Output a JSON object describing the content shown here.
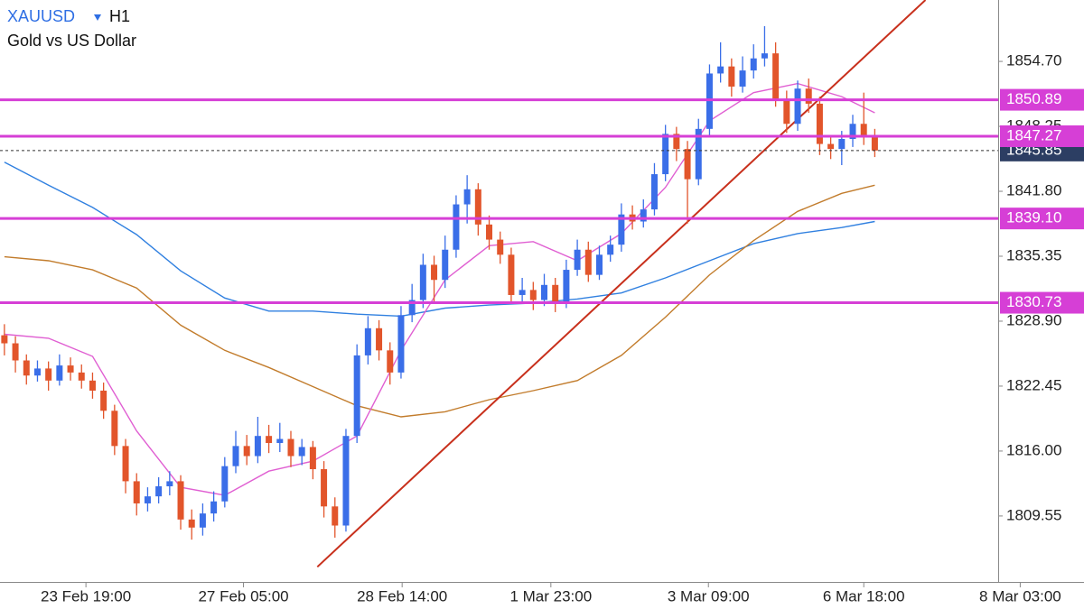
{
  "chart_data": {
    "type": "candlestick",
    "title": "XAUUSD",
    "timeframe": "H1",
    "subtitle": "Gold vs US Dollar",
    "up_color": "#3a6ee8",
    "down_color": "#e2552b",
    "open": [
      1827.5,
      1826.7,
      1825.0,
      1823.5,
      1824.2,
      1823.0,
      1824.5,
      1823.8,
      1823.0,
      1822.0,
      1820.0,
      1816.5,
      1813.0,
      1810.8,
      1811.5,
      1812.5,
      1813.0,
      1809.2,
      1808.4,
      1809.8,
      1811.0,
      1814.5,
      1816.5,
      1815.5,
      1817.5,
      1816.8,
      1817.2,
      1815.5,
      1816.4,
      1814.2,
      1810.5,
      1808.6,
      1817.5,
      1825.5,
      1828.2,
      1826.0,
      1823.8,
      1829.5,
      1831.0,
      1834.5,
      1833.0,
      1836.0,
      1840.5,
      1842.0,
      1838.5,
      1837.0,
      1835.5,
      1831.5,
      1832.0,
      1831.0,
      1832.5,
      1830.8,
      1834.0,
      1836.0,
      1833.5,
      1835.5,
      1836.5,
      1839.5,
      1838.8,
      1840.0,
      1843.5,
      1847.5,
      1846.0,
      1843.0,
      1848.0,
      1853.5,
      1854.2,
      1852.2,
      1853.8,
      1855.0,
      1855.5,
      1851.0,
      1848.5,
      1852.0,
      1850.5,
      1846.5,
      1846.0,
      1847.0,
      1848.5,
      1847.2
    ],
    "high": [
      1828.6,
      1827.4,
      1825.6,
      1825.0,
      1824.9,
      1825.6,
      1825.3,
      1824.6,
      1823.8,
      1822.8,
      1820.6,
      1817.2,
      1813.8,
      1812.4,
      1813.4,
      1814.0,
      1813.6,
      1810.2,
      1810.8,
      1812.0,
      1815.4,
      1818.0,
      1817.6,
      1819.4,
      1818.6,
      1818.8,
      1818.0,
      1817.2,
      1817.0,
      1815.0,
      1811.4,
      1818.2,
      1826.6,
      1829.4,
      1829.0,
      1826.8,
      1830.4,
      1832.6,
      1835.6,
      1835.4,
      1837.4,
      1841.4,
      1843.4,
      1842.6,
      1839.4,
      1837.8,
      1836.2,
      1833.2,
      1832.8,
      1833.6,
      1833.2,
      1835.0,
      1837.0,
      1836.8,
      1836.4,
      1837.4,
      1840.6,
      1840.4,
      1841.0,
      1844.6,
      1848.4,
      1848.2,
      1846.8,
      1849.0,
      1854.4,
      1856.6,
      1855.0,
      1855.2,
      1856.4,
      1858.2,
      1856.6,
      1851.8,
      1852.8,
      1853.0,
      1851.2,
      1847.2,
      1847.8,
      1849.4,
      1851.6,
      1848.0
    ],
    "low": [
      1825.5,
      1823.8,
      1822.6,
      1822.9,
      1822.0,
      1822.5,
      1823.0,
      1822.2,
      1821.2,
      1819.2,
      1815.6,
      1811.8,
      1809.6,
      1810.0,
      1810.8,
      1811.6,
      1808.2,
      1807.2,
      1807.6,
      1809.0,
      1810.4,
      1813.8,
      1814.6,
      1814.8,
      1815.8,
      1815.9,
      1814.4,
      1814.6,
      1813.2,
      1809.4,
      1807.4,
      1808.0,
      1816.8,
      1824.6,
      1825.0,
      1822.6,
      1823.2,
      1828.8,
      1830.2,
      1830.8,
      1832.2,
      1835.2,
      1838.6,
      1837.4,
      1836.0,
      1834.6,
      1830.6,
      1830.8,
      1830.0,
      1830.4,
      1829.8,
      1830.2,
      1833.4,
      1832.8,
      1833.0,
      1834.8,
      1835.8,
      1838.0,
      1838.2,
      1839.4,
      1842.8,
      1844.8,
      1838.6,
      1842.4,
      1847.4,
      1852.6,
      1851.2,
      1851.6,
      1853.0,
      1854.2,
      1850.2,
      1847.6,
      1847.8,
      1849.6,
      1845.4,
      1845.0,
      1844.4,
      1846.2,
      1846.4,
      1845.2
    ],
    "close": [
      1826.7,
      1825.0,
      1823.5,
      1824.2,
      1823.0,
      1824.5,
      1823.8,
      1823.0,
      1822.0,
      1820.0,
      1816.5,
      1813.0,
      1810.8,
      1811.5,
      1812.5,
      1813.0,
      1809.2,
      1808.4,
      1809.8,
      1811.0,
      1814.5,
      1816.5,
      1815.5,
      1817.5,
      1816.8,
      1817.2,
      1815.5,
      1816.4,
      1814.2,
      1810.5,
      1808.6,
      1817.5,
      1825.5,
      1828.2,
      1826.0,
      1823.8,
      1829.5,
      1831.0,
      1834.5,
      1833.0,
      1836.0,
      1840.5,
      1842.0,
      1838.5,
      1837.0,
      1835.5,
      1831.5,
      1832.0,
      1831.0,
      1832.5,
      1830.8,
      1834.0,
      1836.0,
      1833.5,
      1835.5,
      1836.5,
      1839.5,
      1838.8,
      1840.0,
      1843.5,
      1847.5,
      1846.0,
      1843.0,
      1848.0,
      1853.5,
      1854.2,
      1852.2,
      1853.8,
      1855.0,
      1855.5,
      1851.0,
      1848.5,
      1852.0,
      1850.5,
      1846.5,
      1846.0,
      1847.0,
      1848.5,
      1847.2,
      1845.85
    ],
    "overlays": [
      {
        "color": "#3080e0",
        "x": [
          0,
          4,
          8,
          12,
          16,
          20,
          24,
          28,
          32,
          36,
          40,
          44,
          48,
          52,
          56,
          60,
          64,
          68,
          72,
          76,
          79
        ],
        "values": [
          1844.7,
          1842.4,
          1840.2,
          1837.5,
          1833.9,
          1831.2,
          1829.9,
          1829.9,
          1829.6,
          1829.4,
          1830.2,
          1830.5,
          1830.7,
          1831.1,
          1831.7,
          1833.2,
          1834.9,
          1836.6,
          1837.6,
          1838.2,
          1838.8
        ]
      },
      {
        "color": "#c27c2c",
        "x": [
          0,
          4,
          8,
          12,
          16,
          20,
          24,
          28,
          32,
          36,
          40,
          44,
          48,
          52,
          56,
          60,
          64,
          68,
          72,
          76,
          79
        ],
        "values": [
          1835.3,
          1834.9,
          1834.0,
          1832.2,
          1828.5,
          1826.0,
          1824.3,
          1822.4,
          1820.5,
          1819.4,
          1819.9,
          1821.1,
          1822.0,
          1823.0,
          1825.5,
          1829.3,
          1833.5,
          1836.9,
          1839.8,
          1841.6,
          1842.4
        ]
      },
      {
        "color": "#e05fd2",
        "x": [
          0,
          4,
          8,
          12,
          16,
          20,
          24,
          28,
          32,
          36,
          40,
          44,
          48,
          52,
          56,
          60,
          64,
          68,
          72,
          76,
          79
        ],
        "values": [
          1827.6,
          1827.2,
          1825.4,
          1818.0,
          1812.4,
          1811.6,
          1814.0,
          1815.0,
          1817.5,
          1826.0,
          1833.0,
          1836.4,
          1836.8,
          1834.9,
          1837.6,
          1842.2,
          1848.8,
          1851.6,
          1852.5,
          1851.2,
          1849.6
        ]
      },
      {
        "color": "#c8301c",
        "x": [
          28.4,
          83.6
        ],
        "values": [
          1804.5,
          1860.8
        ]
      }
    ],
    "level_color": "#d63fd6",
    "levels": [
      1850.89,
      1847.27,
      {
        "value": 1839.1,
        "label": "1839.10"
      },
      1830.73
    ],
    "last_price": 1845.85,
    "last_price_color": "#2c3e63",
    "xlim": [
      -0.4,
      90.2
    ],
    "xticks": [
      {
        "value": 7.4,
        "label": "23 Feb 19:00"
      },
      {
        "value": 21.7,
        "label": "27 Feb 05:00"
      },
      {
        "value": 36.1,
        "label": "28 Feb 14:00"
      },
      {
        "value": 49.6,
        "label": "1 Mar 23:00"
      },
      {
        "value": 63.9,
        "label": "3 Mar 09:00"
      },
      {
        "value": 78.0,
        "label": "6 Mar 18:00"
      },
      {
        "value": 92.2,
        "label": "8 Mar 03:00"
      }
    ],
    "ylim": [
      1803.0,
      1860.8
    ],
    "yticks": [
      {
        "value": 1854.7,
        "label": "1854.70"
      },
      1848.25,
      {
        "value": 1841.8,
        "label": "1841.80"
      },
      1835.35,
      {
        "value": 1828.9,
        "label": "1828.90"
      },
      1822.45,
      {
        "value": 1816.0,
        "label": "1816.00"
      },
      1809.55
    ]
  }
}
